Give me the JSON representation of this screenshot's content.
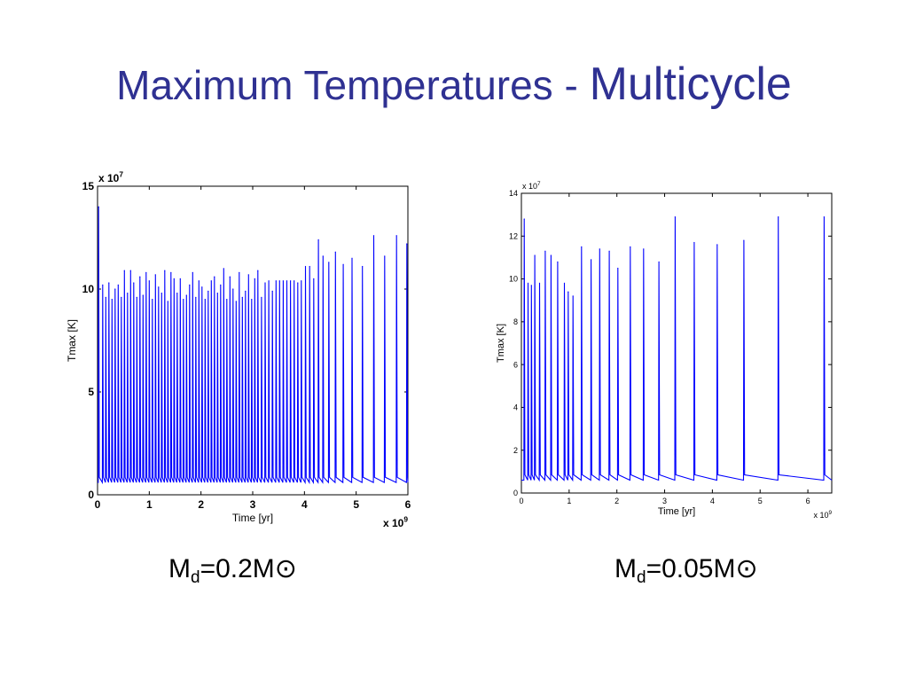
{
  "slide": {
    "title_part1": "Maximum Temperatures - ",
    "title_part2": "Multicycle",
    "captions": [
      {
        "main": "M",
        "sub": "d",
        "rest": "=0.2M",
        "symbol": "⊙"
      },
      {
        "main": "M",
        "sub": "d",
        "rest": "=0.05M",
        "symbol": "⊙"
      }
    ]
  },
  "colors": {
    "title": "#2f3192",
    "line": "#0000ff"
  },
  "chart_data": [
    {
      "type": "line",
      "xlabel": "Time [yr]",
      "ylabel": "Tmax [K]",
      "x_multiplier": "x 10^9",
      "y_multiplier": "x 10^7",
      "xlim": [
        0,
        6
      ],
      "ylim": [
        0,
        15
      ],
      "xticks": [
        0,
        1,
        2,
        3,
        4,
        5,
        6
      ],
      "yticks": [
        0,
        5,
        10,
        15
      ],
      "baseline": 0.6,
      "series": [
        {
          "x": [
            0.02,
            0.1,
            0.16,
            0.22,
            0.28,
            0.34,
            0.4,
            0.46,
            0.52,
            0.58,
            0.64,
            0.7,
            0.76,
            0.82,
            0.88,
            0.94,
            1.0,
            1.06,
            1.12,
            1.18,
            1.24,
            1.3,
            1.36,
            1.42,
            1.48,
            1.54,
            1.6,
            1.66,
            1.72,
            1.78,
            1.84,
            1.9,
            1.96,
            2.02,
            2.08,
            2.14,
            2.2,
            2.26,
            2.32,
            2.38,
            2.44,
            2.5,
            2.56,
            2.62,
            2.68,
            2.74,
            2.8,
            2.86,
            2.92,
            2.98,
            3.04,
            3.1,
            3.17,
            3.24,
            3.31,
            3.38,
            3.45,
            3.52,
            3.59,
            3.66,
            3.73,
            3.8,
            3.87,
            3.94,
            4.02,
            4.1,
            4.18,
            4.27,
            4.36,
            4.47,
            4.6,
            4.75,
            4.92,
            5.12,
            5.34,
            5.55,
            5.78,
            5.98
          ],
          "values": [
            14.0,
            10.2,
            9.6,
            10.3,
            9.5,
            10.0,
            10.2,
            9.6,
            10.9,
            9.8,
            10.9,
            10.3,
            9.6,
            10.6,
            9.7,
            10.8,
            10.4,
            9.5,
            10.7,
            10.1,
            9.8,
            10.9,
            9.4,
            10.8,
            10.5,
            9.8,
            10.5,
            9.5,
            9.7,
            10.2,
            10.8,
            9.6,
            10.4,
            10.1,
            9.5,
            9.9,
            10.4,
            10.6,
            9.8,
            10.2,
            11.0,
            9.5,
            10.6,
            10.0,
            9.4,
            10.8,
            9.6,
            9.9,
            10.7,
            9.5,
            10.5,
            10.9,
            9.6,
            10.3,
            10.4,
            9.9,
            10.4,
            10.4,
            10.4,
            10.4,
            10.4,
            10.4,
            10.3,
            10.4,
            11.1,
            11.1,
            10.5,
            12.4,
            11.6,
            11.3,
            11.8,
            11.2,
            11.5,
            11.1,
            12.6,
            11.6,
            12.6,
            12.2
          ]
        }
      ]
    },
    {
      "type": "line",
      "xlabel": "Time [yr]",
      "ylabel": "Tmax [K]",
      "x_multiplier": "x 10^9",
      "y_multiplier": "x 10^7",
      "xlim": [
        0,
        6.5
      ],
      "ylim": [
        0,
        14
      ],
      "xticks": [
        0,
        1,
        2,
        3,
        4,
        5,
        6
      ],
      "yticks": [
        0,
        2,
        4,
        6,
        8,
        10,
        12,
        14
      ],
      "baseline": 0.6,
      "series": [
        {
          "x": [
            0.06,
            0.14,
            0.21,
            0.28,
            0.38,
            0.5,
            0.62,
            0.76,
            0.9,
            0.98,
            1.08,
            1.26,
            1.46,
            1.64,
            1.84,
            2.02,
            2.28,
            2.56,
            2.88,
            3.22,
            3.62,
            4.1,
            4.66,
            5.38,
            6.34
          ],
          "values": [
            12.8,
            9.8,
            9.7,
            11.1,
            9.8,
            11.3,
            11.1,
            10.8,
            9.8,
            9.4,
            9.2,
            11.5,
            10.9,
            11.4,
            11.3,
            10.5,
            11.5,
            11.4,
            10.8,
            12.9,
            11.7,
            11.6,
            11.8,
            12.9,
            12.9
          ]
        }
      ]
    }
  ]
}
